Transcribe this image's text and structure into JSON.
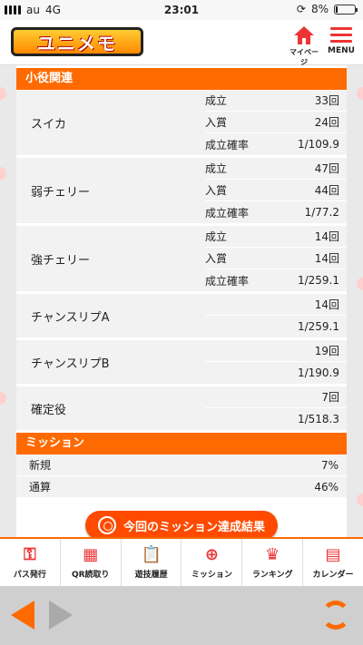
{
  "status": {
    "carrier": "au",
    "network": "4G",
    "time": "23:01",
    "battery": "8%"
  },
  "header": {
    "logo_text": "ユニメモ",
    "mypage_label": "マイページ",
    "menu_label": "MENU"
  },
  "section_small": {
    "title": "小役関連",
    "groups": [
      {
        "name": "スイカ",
        "rows": [
          {
            "k": "成立",
            "v": "33回"
          },
          {
            "k": "入賞",
            "v": "24回"
          },
          {
            "k": "成立確率",
            "v": "1/109.9"
          }
        ]
      },
      {
        "name": "弱チェリー",
        "rows": [
          {
            "k": "成立",
            "v": "47回"
          },
          {
            "k": "入賞",
            "v": "44回"
          },
          {
            "k": "成立確率",
            "v": "1/77.2"
          }
        ]
      },
      {
        "name": "強チェリー",
        "rows": [
          {
            "k": "成立",
            "v": "14回"
          },
          {
            "k": "入賞",
            "v": "14回"
          },
          {
            "k": "成立確率",
            "v": "1/259.1"
          }
        ]
      },
      {
        "name": "チャンスリプA",
        "rows": [
          {
            "k": "",
            "v": "14回"
          },
          {
            "k": "",
            "v": "1/259.1"
          }
        ]
      },
      {
        "name": "チャンスリプB",
        "rows": [
          {
            "k": "",
            "v": "19回"
          },
          {
            "k": "",
            "v": "1/190.9"
          }
        ]
      },
      {
        "name": "確定役",
        "rows": [
          {
            "k": "",
            "v": "7回"
          },
          {
            "k": "",
            "v": "1/518.3"
          }
        ]
      }
    ]
  },
  "section_mission": {
    "title": "ミッション",
    "rows": [
      {
        "k": "新規",
        "v": "7%"
      },
      {
        "k": "通算",
        "v": "46%"
      }
    ],
    "button_label": "今回のミッション達成結果"
  },
  "tabbar": {
    "items": [
      {
        "label": "パス発行",
        "icon": "key-icon"
      },
      {
        "label": "QR読取り",
        "icon": "qr-icon"
      },
      {
        "label": "遊技履歴",
        "icon": "clipboard-icon"
      },
      {
        "label": "ミッション",
        "icon": "target-icon"
      },
      {
        "label": "ランキング",
        "icon": "crown-icon"
      },
      {
        "label": "カレンダー",
        "icon": "calendar-icon"
      }
    ]
  },
  "colors": {
    "accent": "#ff6a00",
    "button": "#ff4a00",
    "icon": "#e33333"
  }
}
